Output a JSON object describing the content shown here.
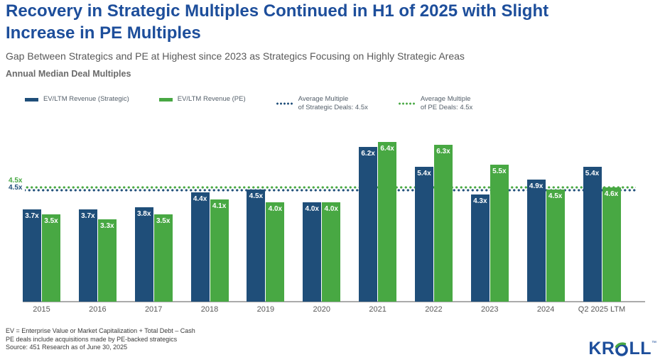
{
  "header": {
    "title": "Recovery in Strategic Multiples Continued in H1 of 2025 with Slight Increase in PE Multiples",
    "subtitle": "Gap Between Strategics and PE at Highest since 2023 as Strategics Focusing on Highly Strategic Areas",
    "section_label": "Annual Median Deal Multiples"
  },
  "colors": {
    "strategic_blue": "#1F4E79",
    "pe_green": "#48A843",
    "title_blue": "#1D4E9B",
    "axis_gray": "#ABABAB",
    "text_gray": "#595959"
  },
  "legend": {
    "items": [
      {
        "swatch": "bar",
        "color": "#1F4E79",
        "label": "EV/LTM Revenue (Strategic)",
        "label2": ""
      },
      {
        "swatch": "bar",
        "color": "#48A843",
        "label": "EV/LTM Revenue (PE)",
        "label2": ""
      },
      {
        "swatch": "dotted",
        "color": "#1F4E79",
        "label": "Average Multiple",
        "label2": "of Strategic Deals: 4.5x"
      },
      {
        "swatch": "dotted",
        "color": "#48A843",
        "label": "Average Multiple",
        "label2": "of PE Deals: 4.5x"
      }
    ]
  },
  "chart_data": {
    "type": "bar",
    "title": "Annual Median Deal Multiples",
    "categories": [
      "2015",
      "2016",
      "2017",
      "2018",
      "2019",
      "2020",
      "2021",
      "2022",
      "2023",
      "2024",
      "Q2 2025 LTM"
    ],
    "series": [
      {
        "name": "EV/LTM Revenue (Strategic)",
        "color": "#1F4E79",
        "values": [
          3.7,
          3.7,
          3.8,
          4.4,
          4.5,
          4.0,
          6.2,
          5.4,
          4.3,
          4.9,
          5.4
        ]
      },
      {
        "name": "EV/LTM Revenue (PE)",
        "color": "#48A843",
        "values": [
          3.5,
          3.3,
          3.5,
          4.1,
          4.0,
          4.0,
          6.4,
          6.3,
          5.5,
          4.5,
          4.6
        ]
      }
    ],
    "value_suffix": "x",
    "ylim": [
      0,
      6.8
    ],
    "grid": false,
    "legend_position": "top",
    "reference_lines": [
      {
        "name": "Average Multiple of PE Deals",
        "value": 4.5,
        "label": "4.5x",
        "color": "#48A843"
      },
      {
        "name": "Average Multiple of Strategic Deals",
        "value": 4.5,
        "label": "4.5x",
        "color": "#1F4E79"
      }
    ]
  },
  "footnotes": [
    "EV = Enterprise Value or Market Capitalization + Total Debt – Cash",
    "PE deals include acquisitions made by PE-backed strategics",
    "Source: 451 Research as of June 30, 2025"
  ],
  "logo": {
    "kr": "KR",
    "ll": "LL",
    "tm": "™"
  }
}
